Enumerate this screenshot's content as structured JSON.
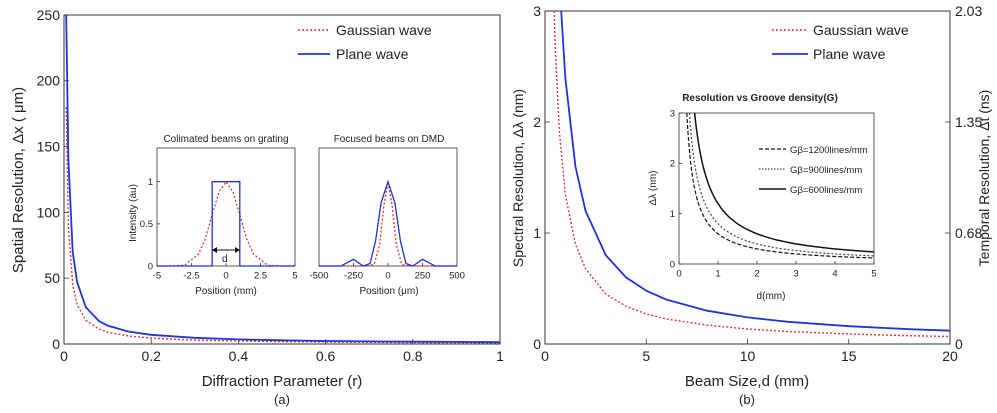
{
  "chart_data": [
    {
      "type": "line",
      "panel_label": "(a)",
      "xlabel": "Diffraction Parameter (r)",
      "ylabel": "Spatial Resolution,  Δx ( μm)",
      "xlim": [
        0,
        1
      ],
      "ylim": [
        0,
        250
      ],
      "xticks": [
        "0",
        "0.2",
        "0.4",
        "0.6",
        "0.8",
        "1"
      ],
      "yticks": [
        "0",
        "50",
        "100",
        "150",
        "200",
        "250"
      ],
      "legend": {
        "placement": "top-right",
        "entries": [
          "Gaussian wave",
          "Plane wave"
        ]
      },
      "series": [
        {
          "name": "Gaussian wave",
          "color": "#e8322e",
          "style": "dotted",
          "x": [
            0.005,
            0.01,
            0.02,
            0.03,
            0.05,
            0.08,
            0.1,
            0.15,
            0.2,
            0.3,
            0.4,
            0.5,
            0.6,
            0.7,
            0.8,
            0.9,
            1.0
          ],
          "y": [
            180,
            90,
            45,
            30,
            18,
            11.3,
            9,
            6,
            4.5,
            3,
            2.3,
            1.8,
            1.5,
            1.3,
            1.1,
            1.0,
            0.9
          ]
        },
        {
          "name": "Plane wave",
          "color": "#1f35d6",
          "style": "solid",
          "x": [
            0.005,
            0.01,
            0.02,
            0.03,
            0.05,
            0.08,
            0.1,
            0.15,
            0.2,
            0.3,
            0.4,
            0.5,
            0.6,
            0.7,
            0.8,
            0.9,
            1.0
          ],
          "y": [
            250,
            140,
            70,
            47,
            28,
            17.5,
            14,
            9.3,
            7,
            4.7,
            3.5,
            2.8,
            2.3,
            2.0,
            1.75,
            1.6,
            1.4
          ]
        }
      ],
      "insets": [
        {
          "type": "line",
          "title": "Colimated beams on grating",
          "xlabel": "Position (mm)",
          "ylabel": "Intensity (au)",
          "xlim": [
            -5,
            5
          ],
          "ylim": [
            0,
            1.4
          ],
          "xticks": [
            "-5",
            "-2.5",
            "0",
            "2.5",
            "5"
          ],
          "yticks": [
            "0",
            "0.5",
            "1"
          ],
          "annotation": "d",
          "series": [
            {
              "color": "#e8322e",
              "style": "dotted",
              "x": [
                -5,
                -4,
                -3,
                -2,
                -1.5,
                -1,
                -0.5,
                0,
                0.5,
                1,
                1.5,
                2,
                3,
                4,
                5
              ],
              "y": [
                0,
                0,
                0.01,
                0.14,
                0.32,
                0.61,
                0.88,
                1,
                0.88,
                0.61,
                0.32,
                0.14,
                0.01,
                0,
                0
              ]
            },
            {
              "color": "#1f35d6",
              "style": "solid",
              "x": [
                -5,
                -1,
                -1,
                1,
                1,
                5
              ],
              "y": [
                0,
                0,
                1,
                1,
                0,
                0
              ]
            }
          ]
        },
        {
          "type": "line",
          "title": "Focused beams on DMD",
          "xlabel": "Position (μm)",
          "ylabel": "",
          "xlim": [
            -500,
            500
          ],
          "ylim": [
            0,
            1.4
          ],
          "xticks": [
            "-500",
            "-250",
            "0",
            "250",
            "500"
          ],
          "series": [
            {
              "color": "#e8322e",
              "style": "dotted",
              "x": [
                -500,
                -150,
                -100,
                -60,
                -30,
                0,
                30,
                60,
                100,
                150,
                500
              ],
              "y": [
                0,
                0,
                0.02,
                0.25,
                0.72,
                1,
                0.72,
                0.25,
                0.02,
                0,
                0
              ]
            },
            {
              "color": "#1f35d6",
              "style": "solid",
              "x": [
                -500,
                -340,
                -250,
                -180,
                -130,
                -90,
                -50,
                0,
                50,
                90,
                130,
                180,
                250,
                340,
                500
              ],
              "y": [
                0,
                0,
                0.08,
                0,
                0.03,
                0.3,
                0.75,
                1,
                0.75,
                0.3,
                0.03,
                0,
                0.08,
                0,
                0
              ]
            }
          ]
        }
      ]
    },
    {
      "type": "line",
      "panel_label": "(b)",
      "xlabel": "Beam Size,d (mm)",
      "ylabel": "Spectral Resolution,  Δλ  (nm)",
      "y2label": "Temporal Resolution,  Δt  (ns)",
      "xlim": [
        0,
        20
      ],
      "ylim": [
        0,
        3
      ],
      "xticks": [
        "0",
        "5",
        "10",
        "15",
        "20"
      ],
      "yticks": [
        "0",
        "1",
        "2",
        "3"
      ],
      "y2ticks": [
        {
          "value": 0,
          "label": "0"
        },
        {
          "value": 1,
          "label": "0.68"
        },
        {
          "value": 2,
          "label": "1.35"
        },
        {
          "value": 3,
          "label": "2.03"
        }
      ],
      "legend": {
        "placement": "top-right",
        "entries": [
          "Gaussian wave",
          "Plane wave"
        ]
      },
      "series": [
        {
          "name": "Gaussian wave",
          "color": "#e8322e",
          "style": "dotted",
          "x": [
            0.45,
            0.5,
            0.7,
            1,
            1.5,
            2,
            3,
            4,
            5,
            6,
            8,
            10,
            12,
            15,
            18,
            20
          ],
          "y": [
            3.0,
            2.7,
            1.93,
            1.35,
            0.9,
            0.68,
            0.45,
            0.34,
            0.27,
            0.225,
            0.17,
            0.135,
            0.113,
            0.09,
            0.075,
            0.068
          ]
        },
        {
          "name": "Plane wave",
          "color": "#1f35d6",
          "style": "solid",
          "x": [
            0.8,
            1,
            1.5,
            2,
            3,
            4,
            5,
            6,
            8,
            10,
            12,
            15,
            18,
            20
          ],
          "y": [
            3.0,
            2.4,
            1.6,
            1.2,
            0.8,
            0.6,
            0.48,
            0.4,
            0.3,
            0.24,
            0.2,
            0.16,
            0.133,
            0.12
          ]
        }
      ],
      "insets": [
        {
          "type": "line",
          "title": "Resolution vs Groove density(G)",
          "xlabel": "d(mm)",
          "ylabel": "Δλ (nm)",
          "xlim": [
            0,
            5
          ],
          "ylim": [
            0,
            3
          ],
          "xticks": [
            "0",
            "1",
            "2",
            "3",
            "4",
            "5"
          ],
          "yticks": [
            "0",
            "1",
            "2",
            "3"
          ],
          "legend_entries": [
            "Gβ=1200lines/mm",
            "Gβ=900lines/mm",
            "Gβ=600lines/mm"
          ],
          "series": [
            {
              "name": "Gβ=1200lines/mm",
              "color": "#111111",
              "style": "dashed",
              "k": 0.6
            },
            {
              "name": "Gβ=900lines/mm",
              "color": "#444444",
              "style": "dotted",
              "k": 0.8
            },
            {
              "name": "Gβ=600lines/mm",
              "color": "#111111",
              "style": "solid",
              "k": 1.2
            }
          ]
        }
      ]
    }
  ]
}
